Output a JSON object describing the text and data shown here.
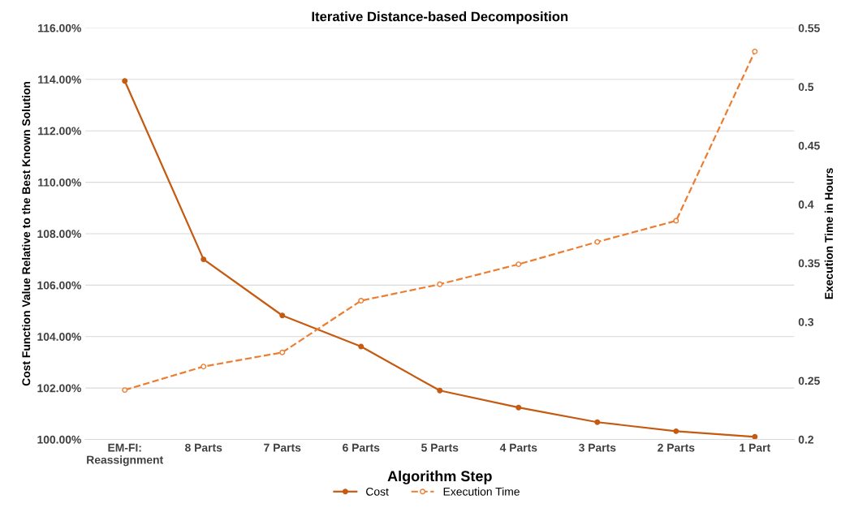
{
  "chart_data": {
    "type": "line",
    "title": "Iterative Distance-based Decomposition",
    "xlabel": "Algorithm Step",
    "ylabel": "Cost Function Value Relative to the Best Known Solution",
    "y2label": "Execution Time in Hours",
    "categories": [
      "EM-FI:\nReassignment",
      "8 Parts",
      "7 Parts",
      "6 Parts",
      "5 Parts",
      "4 Parts",
      "3 Parts",
      "2 Parts",
      "1 Part"
    ],
    "series": [
      {
        "name": "Cost",
        "color": "#c55a11",
        "values": [
          113.94,
          107.0,
          104.82,
          103.61,
          101.9,
          101.24,
          100.67,
          100.32,
          100.1
        ],
        "line_style": "solid"
      },
      {
        "name": "Execution Time",
        "color": "#ed7d31",
        "values": [
          0.242,
          0.262,
          0.274,
          0.318,
          0.332,
          0.349,
          0.368,
          0.386,
          0.53
        ],
        "axis": "y2",
        "line_style": "dashed"
      }
    ],
    "ylim": [
      100,
      116
    ],
    "yticks": [
      {
        "value": 100,
        "label": "100.00%"
      },
      {
        "value": 102,
        "label": "102.00%"
      },
      {
        "value": 104,
        "label": "104.00%"
      },
      {
        "value": 106,
        "label": "106.00%"
      },
      {
        "value": 108,
        "label": "108.00%"
      },
      {
        "value": 110,
        "label": "110.00%"
      },
      {
        "value": 112,
        "label": "112.00%"
      },
      {
        "value": 114,
        "label": "114.00%"
      },
      {
        "value": 116,
        "label": "116.00%"
      }
    ],
    "y2lim": [
      0.2,
      0.55
    ],
    "y2ticks": [
      0.2,
      0.25,
      0.3,
      0.35,
      0.4,
      0.45,
      0.5,
      0.55
    ],
    "grid": "y",
    "legend": "bottom",
    "marker": "circle"
  }
}
